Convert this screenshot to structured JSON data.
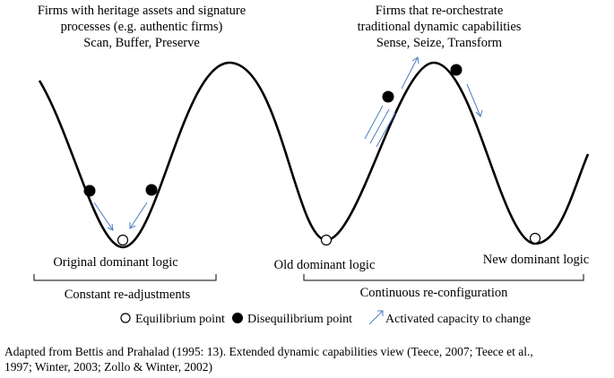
{
  "top_left_text": {
    "line1": "Firms with heritage assets and signature",
    "line2": "processes (e.g. authentic firms)",
    "line3": "Scan, Buffer, Preserve"
  },
  "top_right_text": {
    "line1": "Firms that re-orchestrate",
    "line2": "traditional dynamic capabilities",
    "line3": "Sense, Seize, Transform"
  },
  "labels": {
    "original": "Original dominant logic",
    "old": "Old dominant logic",
    "new": "New dominant logic"
  },
  "brackets": {
    "left": "Constant re-adjustments",
    "right": "Continuous re-configuration"
  },
  "legend": {
    "equilibrium": "Equilibrium point",
    "disequilibrium": "Disequilibrium point",
    "capacity": "Activated capacity to change"
  },
  "caption": {
    "line1": "Adapted from Bettis and Prahalad (1995: 13). Extended dynamic capabilities view (Teece, 2007; Teece et al.,",
    "line2": "1997; Winter, 2003; Zollo & Winter, 2002)"
  },
  "colors": {
    "curve": "#000000",
    "arrow": "#4a7fc1"
  }
}
